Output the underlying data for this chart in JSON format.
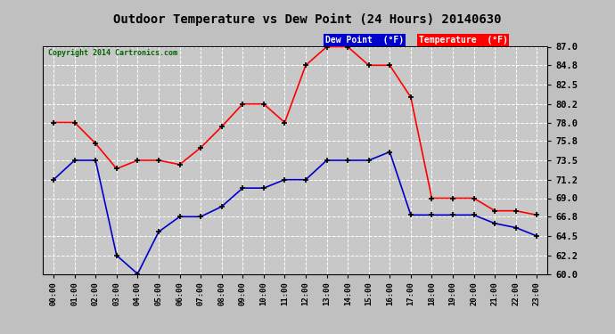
{
  "title": "Outdoor Temperature vs Dew Point (24 Hours) 20140630",
  "copyright": "Copyright 2014 Cartronics.com",
  "hours": [
    "00:00",
    "01:00",
    "02:00",
    "03:00",
    "04:00",
    "05:00",
    "06:00",
    "07:00",
    "08:00",
    "09:00",
    "10:00",
    "11:00",
    "12:00",
    "13:00",
    "14:00",
    "15:00",
    "16:00",
    "17:00",
    "18:00",
    "19:00",
    "20:00",
    "21:00",
    "22:00",
    "23:00"
  ],
  "temperature": [
    78.0,
    78.0,
    75.5,
    72.5,
    73.5,
    73.5,
    73.0,
    75.0,
    77.5,
    80.2,
    80.2,
    78.0,
    84.8,
    87.0,
    87.0,
    84.8,
    84.8,
    81.0,
    69.0,
    69.0,
    69.0,
    67.5,
    67.5,
    67.0
  ],
  "dewpoint": [
    71.2,
    73.5,
    73.5,
    62.2,
    60.0,
    65.0,
    66.8,
    66.8,
    68.0,
    70.2,
    70.2,
    71.2,
    71.2,
    73.5,
    73.5,
    73.5,
    74.5,
    67.0,
    67.0,
    67.0,
    67.0,
    66.0,
    65.5,
    64.5
  ],
  "temp_color": "#ff0000",
  "dew_color": "#0000cc",
  "bg_color": "#c0c0c0",
  "plot_bg_color": "#c8c8c8",
  "grid_color": "#ffffff",
  "ylim": [
    60.0,
    87.0
  ],
  "yticks": [
    60.0,
    62.2,
    64.5,
    66.8,
    69.0,
    71.2,
    73.5,
    75.8,
    78.0,
    80.2,
    82.5,
    84.8,
    87.0
  ],
  "legend_dew_bg": "#0000cc",
  "legend_temp_bg": "#ff0000",
  "legend_text_color": "#ffffff",
  "title_color": "#000000",
  "copyright_color": "#006400",
  "marker": "+",
  "markercolor": "#000000",
  "markersize": 5,
  "linewidth": 1.2
}
